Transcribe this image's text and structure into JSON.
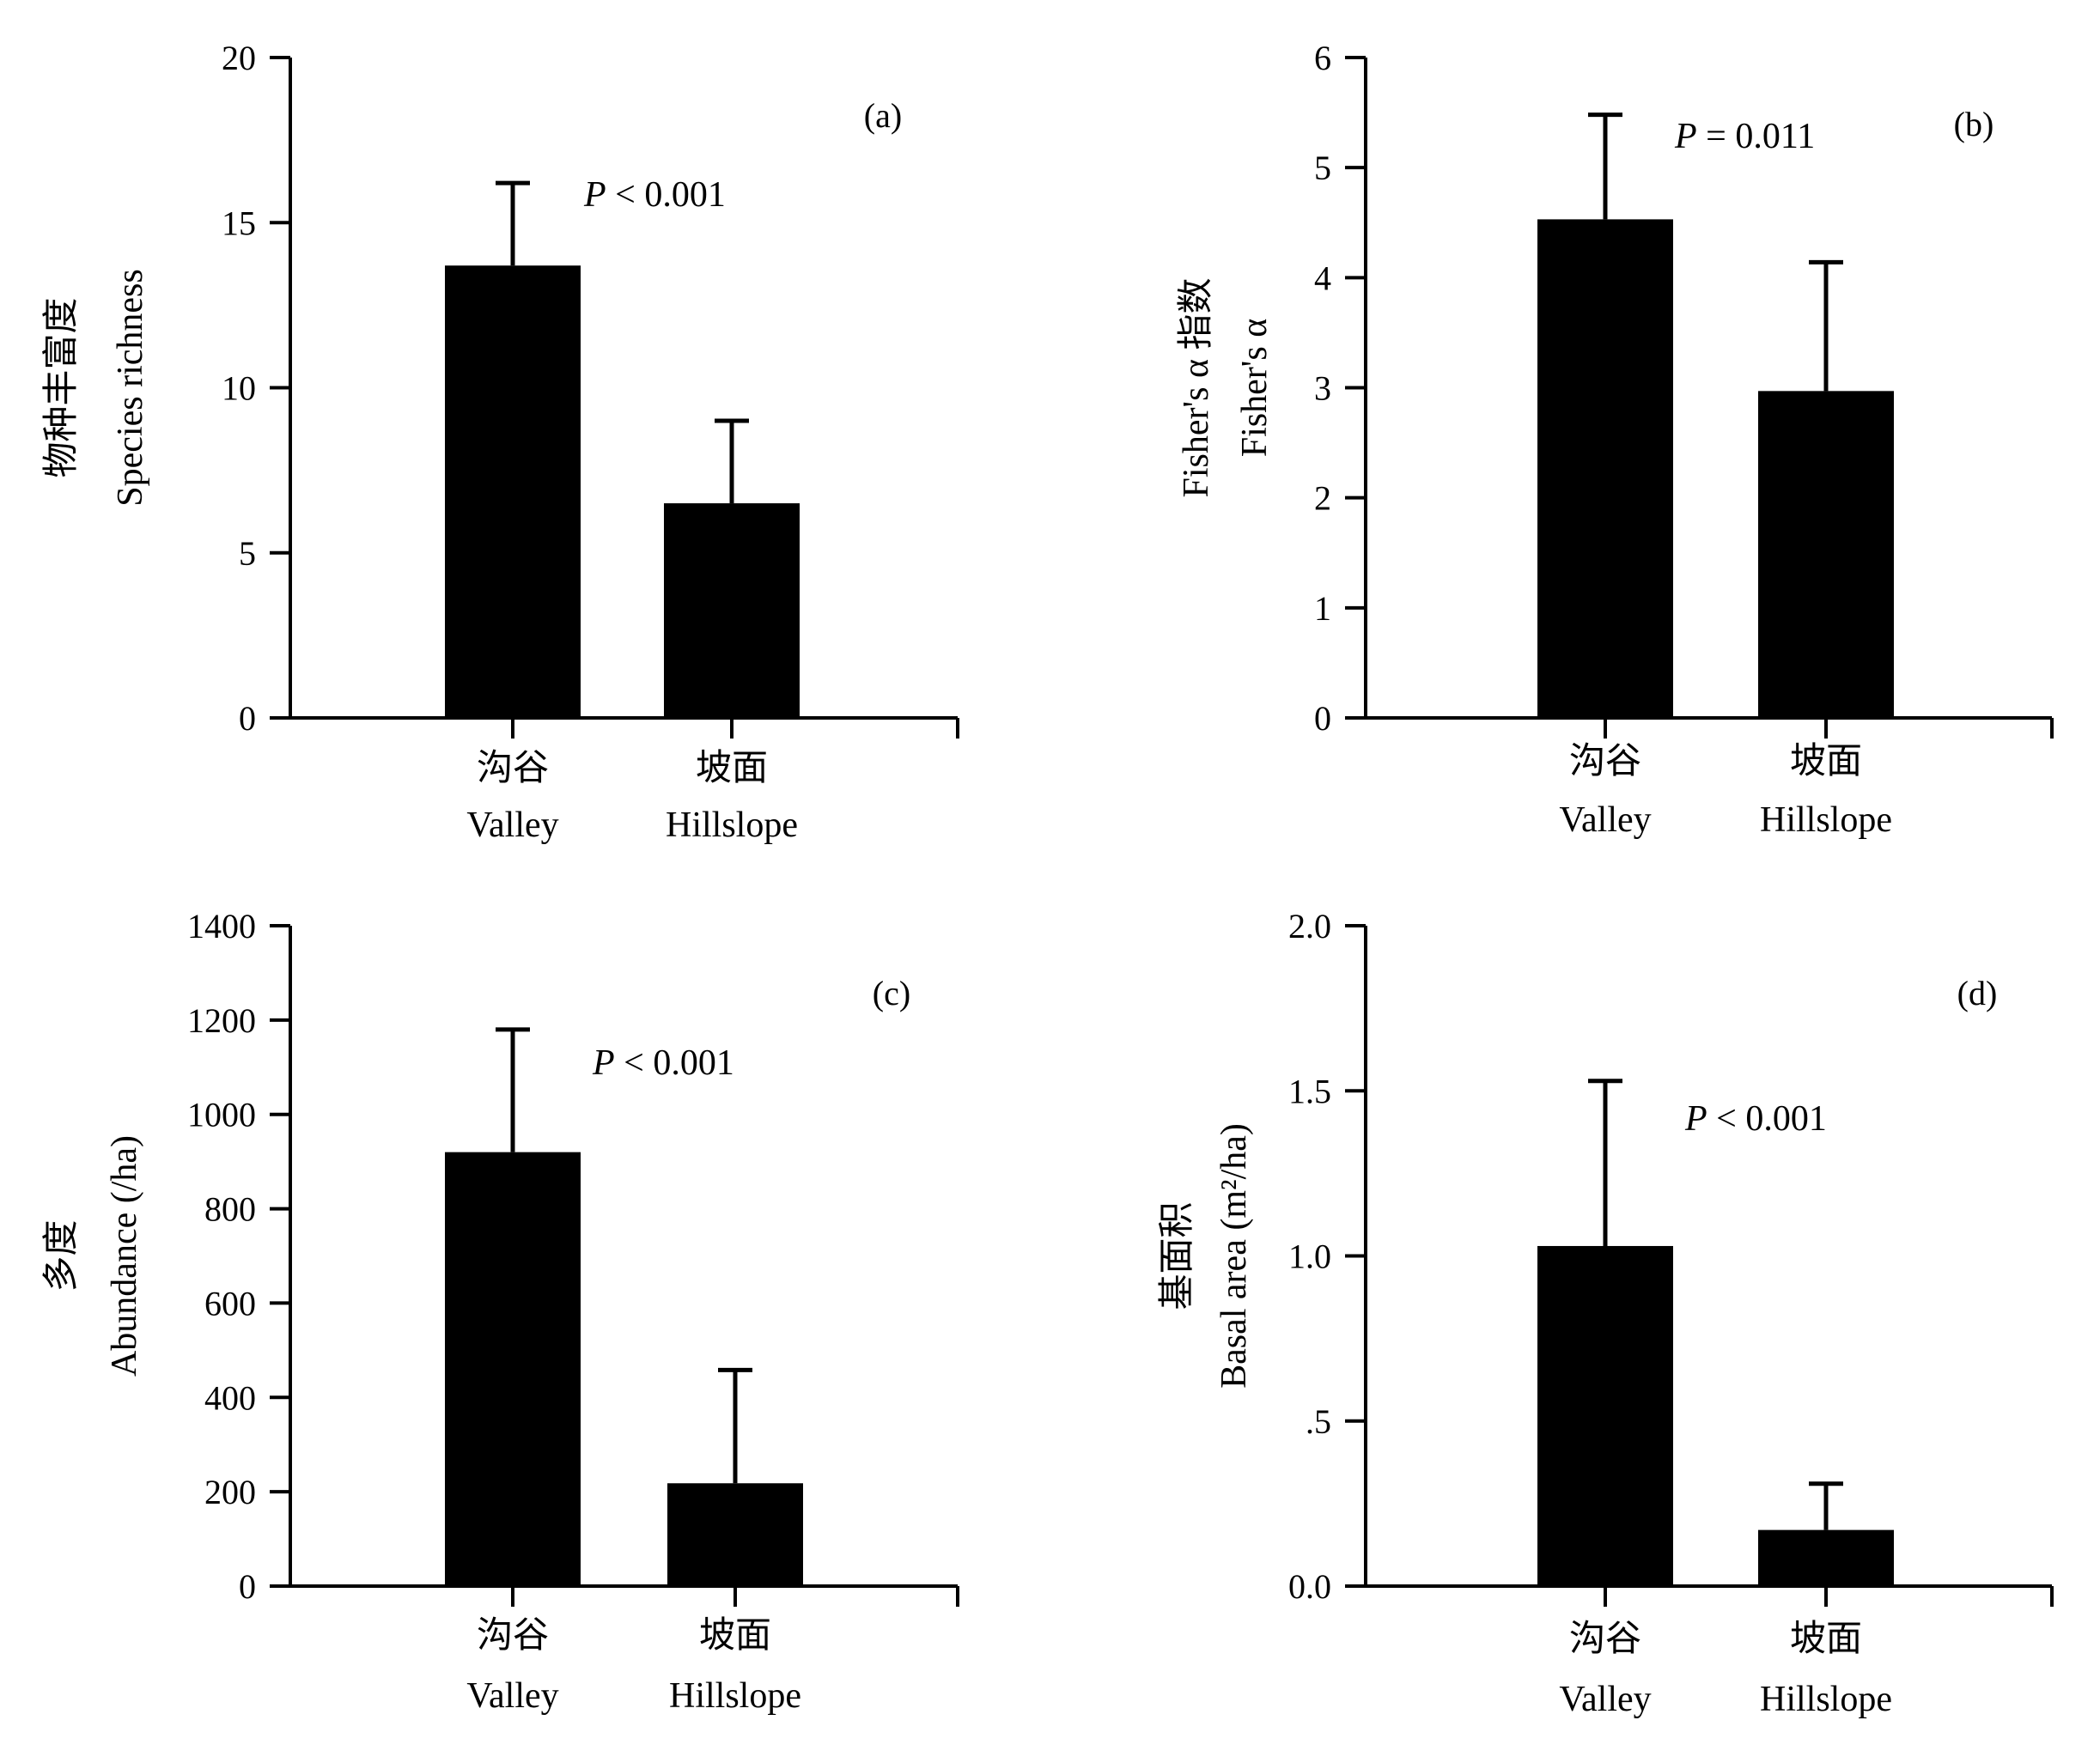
{
  "chart_data": [
    {
      "type": "bar",
      "panel": "(a)",
      "categories": [
        "沟谷 Valley",
        "坡面 Hillslope"
      ],
      "category_lines": [
        [
          "沟谷",
          "Valley"
        ],
        [
          "坡面",
          "Hillslope"
        ]
      ],
      "values": [
        13.7,
        6.5
      ],
      "error": [
        2.5,
        2.5
      ],
      "ylabel_lines": [
        "物种丰富度",
        "Species richness"
      ],
      "ylim": [
        0,
        20
      ],
      "yticks": [
        0,
        5,
        10,
        15,
        20
      ],
      "ytick_labels": [
        "0",
        "5",
        "10",
        "15",
        "20"
      ],
      "p_italic": "P",
      "p_text": " < 0.001",
      "bar_color": "#000000",
      "grid": false
    },
    {
      "type": "bar",
      "panel": "(b)",
      "categories": [
        "沟谷 Valley",
        "坡面 Hillslope"
      ],
      "category_lines": [
        [
          "沟谷",
          "Valley"
        ],
        [
          "坡面",
          "Hillslope"
        ]
      ],
      "values": [
        4.53,
        2.97
      ],
      "error": [
        0.95,
        1.17
      ],
      "ylabel_lines": [
        "Fisher's α 指数",
        "Fisher's α"
      ],
      "ylim": [
        0,
        6
      ],
      "yticks": [
        0,
        1,
        2,
        3,
        4,
        5,
        6
      ],
      "ytick_labels": [
        "0",
        "1",
        "2",
        "3",
        "4",
        "5",
        "6"
      ],
      "p_italic": "P",
      "p_text": " = 0.011",
      "bar_color": "#000000",
      "grid": false
    },
    {
      "type": "bar",
      "panel": "(c)",
      "categories": [
        "沟谷 Valley",
        "坡面 Hillslope"
      ],
      "category_lines": [
        [
          "沟谷",
          "Valley"
        ],
        [
          "坡面",
          "Hillslope"
        ]
      ],
      "values": [
        920,
        218
      ],
      "error": [
        260,
        240
      ],
      "ylabel_lines": [
        "多度",
        "Abundance (/ha)"
      ],
      "ylim": [
        0,
        1400
      ],
      "yticks": [
        0,
        200,
        400,
        600,
        800,
        1000,
        1200,
        1400
      ],
      "ytick_labels": [
        "0",
        "200",
        "400",
        "600",
        "800",
        "1000",
        "1200",
        "1400"
      ],
      "p_italic": "P",
      "p_text": " < 0.001",
      "bar_color": "#000000",
      "grid": false
    },
    {
      "type": "bar",
      "panel": "(d)",
      "categories": [
        "沟谷 Valley",
        "坡面 Hillslope"
      ],
      "category_lines": [
        [
          "沟谷",
          "Valley"
        ],
        [
          "坡面",
          "Hillslope"
        ]
      ],
      "values": [
        1.03,
        0.17
      ],
      "error": [
        0.5,
        0.14
      ],
      "ylabel_lines": [
        "基面积",
        "Basal area  (m²/ha)"
      ],
      "ylim": [
        0,
        2
      ],
      "yticks": [
        0,
        0.5,
        1,
        1.5,
        2
      ],
      "ytick_labels": [
        "0.0",
        ".5",
        "1.0",
        "1.5",
        "2.0"
      ],
      "p_italic": "P",
      "p_text": " < 0.001",
      "bar_color": "#000000",
      "grid": false
    }
  ]
}
